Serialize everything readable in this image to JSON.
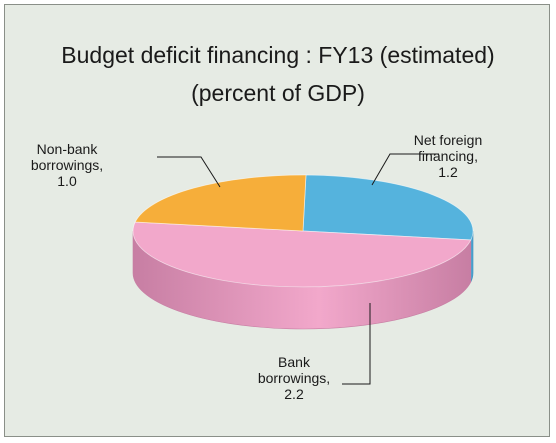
{
  "title_line1": "Budget deficit financing : FY13 (estimated)",
  "title_line2": "(percent of GDP)",
  "chart_data": {
    "type": "pie",
    "title": "Budget deficit financing : FY13 (estimated) (percent of GDP)",
    "unit": "percent of GDP",
    "slices": [
      {
        "label_lines": [
          "Net foreign",
          "financing,",
          "1.2"
        ],
        "name": "Net foreign financing",
        "value": 1.2,
        "color": "#55b3dd",
        "side_color": "#3a8dbd"
      },
      {
        "label_lines": [
          "Bank",
          "borrowings,",
          "2.2"
        ],
        "name": "Bank borrowings",
        "value": 2.2,
        "color": "#f2a8cb",
        "side_color": "#c77ea3"
      },
      {
        "label_lines": [
          "Non-bank",
          "borrowings,",
          "1.0"
        ],
        "name": "Non-bank borrowings",
        "value": 1.0,
        "color": "#f6ae3a",
        "side_color": "#c9871f"
      }
    ],
    "background": "#e6ebe4"
  }
}
